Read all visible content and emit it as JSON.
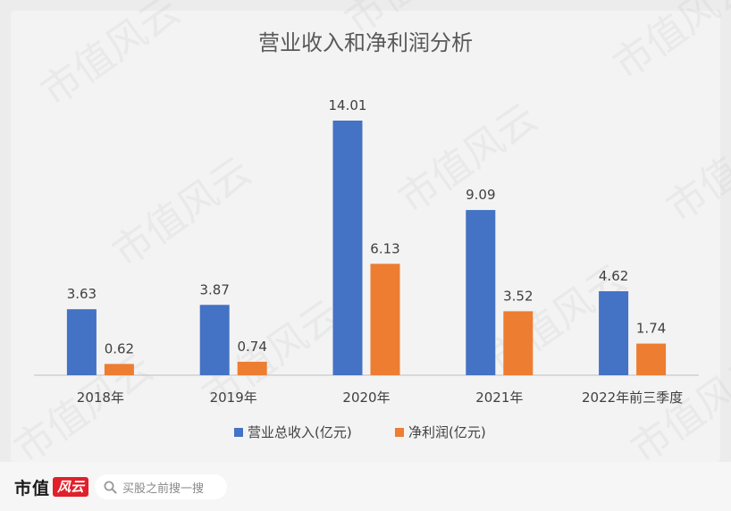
{
  "chart_data": {
    "type": "bar",
    "title": "营业收入和净利润分析",
    "categories": [
      "2018年",
      "2019年",
      "2020年",
      "2021年",
      "2022年前三季度"
    ],
    "series": [
      {
        "name": "营业总收入(亿元)",
        "color": "#4472c4",
        "values": [
          3.63,
          3.87,
          14.01,
          9.09,
          4.62
        ]
      },
      {
        "name": "净利润(亿元)",
        "color": "#ed7d31",
        "values": [
          0.62,
          0.74,
          6.13,
          3.52,
          1.74
        ]
      }
    ],
    "ylim": [
      0,
      14.01
    ],
    "xlabel": "",
    "ylabel": "",
    "grid": false,
    "legend": "bottom"
  },
  "watermark": "市值风云",
  "footer": {
    "logo_text": "市值",
    "logo_mark": "风云",
    "search_placeholder": "买股之前搜一搜",
    "search_icon": "search-icon"
  }
}
